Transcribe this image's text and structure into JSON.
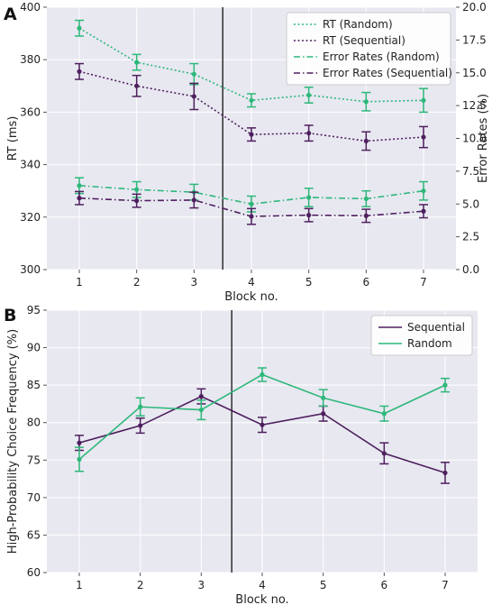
{
  "chart_data": [
    {
      "panel_label": "A",
      "type": "line",
      "x": [
        1,
        2,
        3,
        4,
        5,
        6,
        7
      ],
      "xlabel": "Block no.",
      "ylabel": "RT (ms)",
      "ylim": [
        300,
        400
      ],
      "yticks": [
        300,
        320,
        340,
        360,
        380,
        400
      ],
      "y2label": "Error Rates (%)",
      "y2lim": [
        0,
        20
      ],
      "y2ticks": [
        "0.0",
        "2.5",
        "5.0",
        "7.5",
        "10.0",
        "12.5",
        "15.0",
        "17.5",
        "20.0"
      ],
      "grid": true,
      "legend_position": "top-right",
      "separator_between": [
        3,
        4
      ],
      "series": [
        {
          "name": "RT (Random)",
          "axis": "left",
          "style": "dotted",
          "color": "#2db87a",
          "values": [
            392,
            379,
            374.5,
            364.5,
            366.5,
            364,
            364.5
          ],
          "errors": [
            3,
            3,
            4,
            2.5,
            3,
            3.5,
            4.5
          ]
        },
        {
          "name": "RT (Sequential)",
          "axis": "left",
          "style": "dotted",
          "color": "#4e1f5e",
          "values": [
            375.5,
            370,
            366,
            351.5,
            352,
            349,
            350.5
          ],
          "errors": [
            3,
            4,
            5,
            2.5,
            3,
            3.5,
            4
          ]
        },
        {
          "name": "Error Rates (Random)",
          "axis": "right",
          "style": "dashdot",
          "color": "#2db87a",
          "values": [
            6.4,
            6.1,
            5.9,
            5.0,
            5.5,
            5.4,
            6.0
          ],
          "errors": [
            0.6,
            0.6,
            0.6,
            0.6,
            0.7,
            0.6,
            0.7
          ]
        },
        {
          "name": "Error Rates (Sequential)",
          "axis": "right",
          "style": "dashdot",
          "color": "#4e1f5e",
          "values": [
            5.45,
            5.25,
            5.3,
            4.05,
            4.15,
            4.1,
            4.45
          ],
          "errors": [
            0.5,
            0.5,
            0.6,
            0.6,
            0.5,
            0.5,
            0.5
          ]
        }
      ]
    },
    {
      "panel_label": "B",
      "type": "line",
      "x": [
        1,
        2,
        3,
        4,
        5,
        6,
        7
      ],
      "xlabel": "Block no.",
      "ylabel": "High-Probability Choice Frequency (%)",
      "ylim": [
        60,
        95
      ],
      "yticks": [
        60,
        65,
        70,
        75,
        80,
        85,
        90,
        95
      ],
      "grid": true,
      "legend_position": "top-right",
      "separator_between": [
        3,
        4
      ],
      "series": [
        {
          "name": "Sequential",
          "style": "solid",
          "color": "#4e1f5e",
          "values": [
            77.3,
            79.6,
            83.5,
            79.7,
            81.2,
            75.9,
            73.3
          ],
          "errors": [
            1.0,
            1.0,
            1.0,
            1.0,
            1.0,
            1.4,
            1.4
          ]
        },
        {
          "name": "Random",
          "style": "solid",
          "color": "#2db87a",
          "values": [
            75.1,
            82.1,
            81.7,
            86.4,
            83.3,
            81.2,
            85.0
          ],
          "errors": [
            1.6,
            1.2,
            1.3,
            0.9,
            1.1,
            1.0,
            0.9
          ]
        }
      ]
    }
  ]
}
